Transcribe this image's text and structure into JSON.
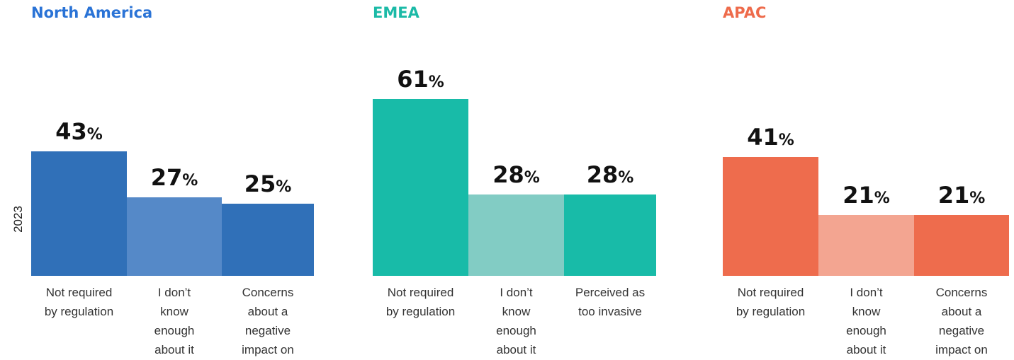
{
  "year_label": "2023",
  "percent_sign": "%",
  "chart_data": [
    {
      "type": "bar",
      "title": "North America",
      "colors": [
        "#3070b8",
        "#5589c8",
        "#3070b8"
      ],
      "title_color": "#2a73d6",
      "categories": [
        "Not required\nby regulation",
        "I don’t\nknow\nenough\nabout it",
        "Concerns\nabout a\nnegative\nimpact on"
      ],
      "values": [
        43,
        27,
        25
      ],
      "ylim": [
        0,
        100
      ]
    },
    {
      "type": "bar",
      "title": "EMEA",
      "colors": [
        "#18bba8",
        "#82ccc4",
        "#18bba8"
      ],
      "title_color": "#1bbaa7",
      "categories": [
        "Not required\nby regulation",
        "I don’t\nknow\nenough\nabout it",
        "Perceived as\ntoo invasive"
      ],
      "values": [
        61,
        28,
        28
      ],
      "ylim": [
        0,
        100
      ]
    },
    {
      "type": "bar",
      "title": "APAC",
      "colors": [
        "#ee6c4d",
        "#f3a591",
        "#ee6c4d"
      ],
      "title_color": "#ee6b4b",
      "categories": [
        "Not required\nby regulation",
        "I don’t\nknow\nenough\nabout it",
        "Concerns\nabout a\nnegative\nimpact on"
      ],
      "values": [
        41,
        21,
        21
      ],
      "ylim": [
        0,
        100
      ]
    }
  ]
}
